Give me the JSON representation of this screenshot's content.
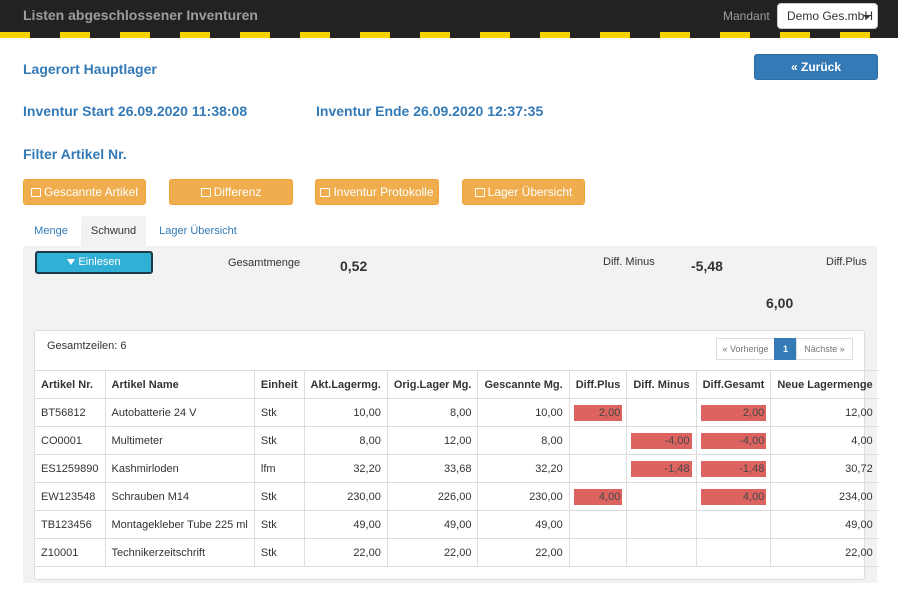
{
  "topbar": {
    "title": "Listen abgeschlossener Inventuren",
    "mandant_label": "Mandant",
    "mandant_value": "Demo Ges.mbH"
  },
  "header": {
    "lagerort": "Lagerort Hauptlager",
    "back_label": "Zurück",
    "start": "Inventur Start 26.09.2020 11:38:08",
    "end": "Inventur Ende 26.09.2020 12:37:35",
    "filter": "Filter Artikel Nr."
  },
  "actions": {
    "scanned": "Gescannte Artikel",
    "diff": "Differenz",
    "protocol": "Inventur Protokolle",
    "overview": "Lager Übersicht"
  },
  "tabs": {
    "menge": "Menge",
    "schwund": "Schwund",
    "lager": "Lager Übersicht"
  },
  "summary": {
    "einlesen": "Einlesen",
    "gesamtmenge_label": "Gesamtmenge",
    "gesamtmenge_value": "0,52",
    "diff_minus_label": "Diff. Minus",
    "diff_minus_value": "-5,48",
    "diff_plus_label": "Diff.Plus",
    "diff_plus_value": "6,00"
  },
  "table": {
    "total_rows": "Gesamtzeilen: 6",
    "pager": {
      "prev": "« Vorherige",
      "current": "1",
      "next": "Nächste »"
    },
    "columns": [
      "Artikel Nr.",
      "Artikel Name",
      "Einheit",
      "Akt.Lagermg.",
      "Orig.Lager Mg.",
      "Gescannte Mg.",
      "Diff.Plus",
      "Diff. Minus",
      "Diff.Gesamt",
      "Neue Lagermenge"
    ],
    "rows": [
      [
        "BT56812",
        "Autobatterie 24 V",
        "Stk",
        "10,00",
        "8,00",
        "10,00",
        "2,00",
        "",
        "2,00",
        "12,00"
      ],
      [
        "CO0001",
        "Multimeter",
        "Stk",
        "8,00",
        "12,00",
        "8,00",
        "",
        "-4,00",
        "-4,00",
        "4,00"
      ],
      [
        "ES1259890",
        "Kashmirloden",
        "lfm",
        "32,20",
        "33,68",
        "32,20",
        "",
        "-1,48",
        "-1,48",
        "30,72"
      ],
      [
        "EW123548",
        "Schrauben M14",
        "Stk",
        "230,00",
        "226,00",
        "230,00",
        "4,00",
        "",
        "4,00",
        "234,00"
      ],
      [
        "TB123456",
        "Montagekleber Tube 225 ml",
        "Stk",
        "49,00",
        "49,00",
        "49,00",
        "",
        "",
        "",
        "49,00"
      ],
      [
        "Z10001",
        "Technikerzeitschrift",
        "Stk",
        "22,00",
        "22,00",
        "22,00",
        "",
        "",
        "",
        "22,00"
      ]
    ]
  },
  "colors": {
    "primary": "#337ab7",
    "warning": "#f0ad4e",
    "info": "#31b0d5",
    "danger": "#d9534f"
  }
}
